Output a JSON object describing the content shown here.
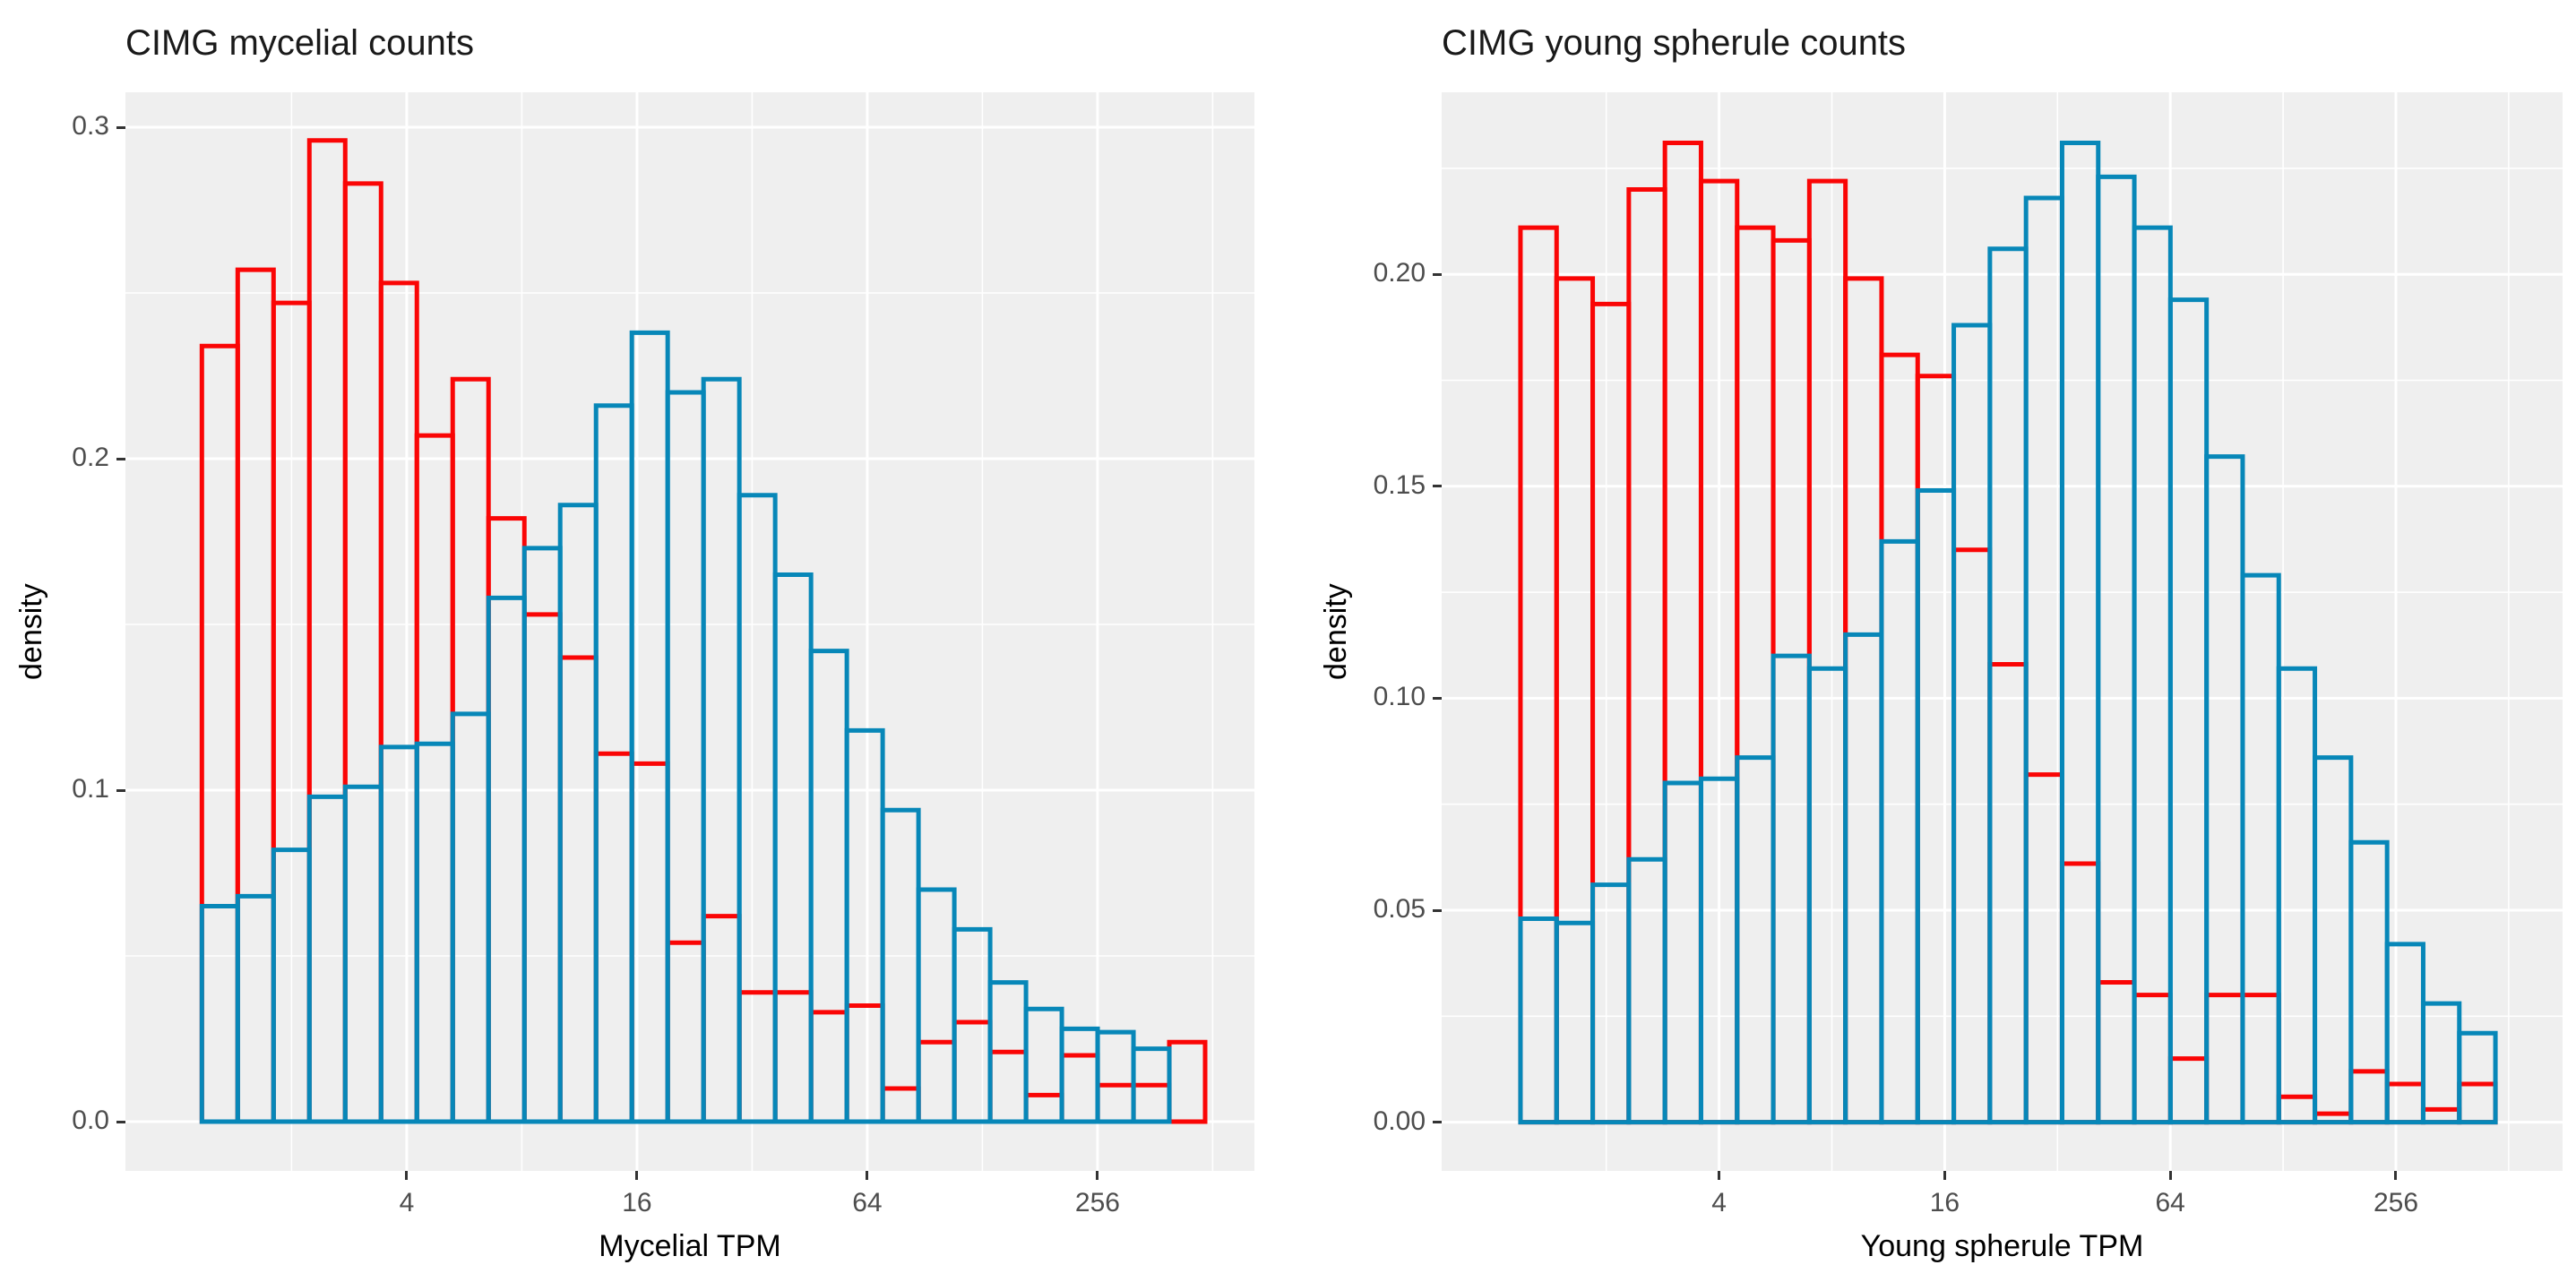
{
  "chart_data": [
    {
      "type": "histogram",
      "title": "CIMG mycelial counts",
      "xlabel": "Mycelial TPM",
      "ylabel": "density",
      "x_scale": "log2",
      "legend": "none",
      "grid": true,
      "panel_bg": "#EFEFEF",
      "grid_color": "#FFFFFF",
      "x_ticks": [
        {
          "label": "4",
          "log2": 2
        },
        {
          "label": "16",
          "log2": 4
        },
        {
          "label": "64",
          "log2": 6
        },
        {
          "label": "256",
          "log2": 8
        }
      ],
      "x_minor_log2": [
        1,
        3,
        5,
        7,
        9
      ],
      "y_ticks": [
        {
          "label": "0.3",
          "value": 0.3
        },
        {
          "label": "0.2",
          "value": 0.2
        },
        {
          "label": "0.1",
          "value": 0.1
        },
        {
          "label": "0.0",
          "value": 0.0
        }
      ],
      "y_minor": [
        0.25,
        0.15,
        0.05
      ],
      "ylim": [
        0,
        0.31
      ],
      "bin_start_log2": 0.221,
      "bin_width_log2": 0.3112,
      "series": [
        {
          "name": "mycelial",
          "color": "#FA0505",
          "values": [
            0.234,
            0.257,
            0.247,
            0.296,
            0.283,
            0.253,
            0.207,
            0.224,
            0.182,
            0.153,
            0.14,
            0.111,
            0.108,
            0.054,
            0.062,
            0.039,
            0.039,
            0.033,
            0.035,
            0.01,
            0.024,
            0.03,
            0.021,
            0.008,
            0.02,
            0.011,
            0.011,
            0.024
          ]
        },
        {
          "name": "young_spherule",
          "color": "#0787B8",
          "values": [
            0.065,
            0.068,
            0.082,
            0.098,
            0.101,
            0.113,
            0.114,
            0.123,
            0.158,
            0.173,
            0.186,
            0.216,
            0.238,
            0.22,
            0.224,
            0.189,
            0.165,
            0.142,
            0.118,
            0.094,
            0.07,
            0.058,
            0.042,
            0.034,
            0.028,
            0.027,
            0.022,
            null
          ]
        }
      ]
    },
    {
      "type": "histogram",
      "title": "CIMG young spherule counts",
      "xlabel": "Young spherule TPM",
      "ylabel": "density",
      "x_scale": "log2",
      "legend": "none",
      "grid": true,
      "panel_bg": "#EFEFEF",
      "grid_color": "#FFFFFF",
      "x_ticks": [
        {
          "label": "4",
          "log2": 2
        },
        {
          "label": "16",
          "log2": 4
        },
        {
          "label": "64",
          "log2": 6
        },
        {
          "label": "256",
          "log2": 8
        }
      ],
      "x_minor_log2": [
        1,
        3,
        5,
        7,
        9
      ],
      "y_ticks": [
        {
          "label": "0.20",
          "value": 0.2
        },
        {
          "label": "0.15",
          "value": 0.15
        },
        {
          "label": "0.10",
          "value": 0.1
        },
        {
          "label": "0.05",
          "value": 0.05
        },
        {
          "label": "0.00",
          "value": 0.0
        }
      ],
      "y_minor": [
        0.225,
        0.175,
        0.125,
        0.075,
        0.025
      ],
      "ylim": [
        0,
        0.243
      ],
      "bin_start_log2": 0.2396,
      "bin_width_log2": 0.3201,
      "series": [
        {
          "name": "mycelial",
          "color": "#FA0505",
          "values": [
            0.211,
            0.199,
            0.193,
            0.22,
            0.231,
            0.222,
            0.211,
            0.208,
            0.222,
            0.199,
            0.181,
            0.176,
            0.135,
            0.108,
            0.082,
            0.061,
            0.033,
            0.03,
            0.015,
            0.03,
            0.03,
            0.006,
            0.002,
            0.012,
            0.009,
            0.003,
            0.009
          ]
        },
        {
          "name": "young_spherule",
          "color": "#0787B8",
          "values": [
            0.048,
            0.047,
            0.056,
            0.062,
            0.08,
            0.081,
            0.086,
            0.11,
            0.107,
            0.115,
            0.137,
            0.149,
            0.188,
            0.206,
            0.218,
            0.231,
            0.223,
            0.211,
            0.194,
            0.157,
            0.129,
            0.107,
            0.086,
            0.066,
            0.042,
            0.028,
            0.021
          ]
        }
      ]
    }
  ]
}
